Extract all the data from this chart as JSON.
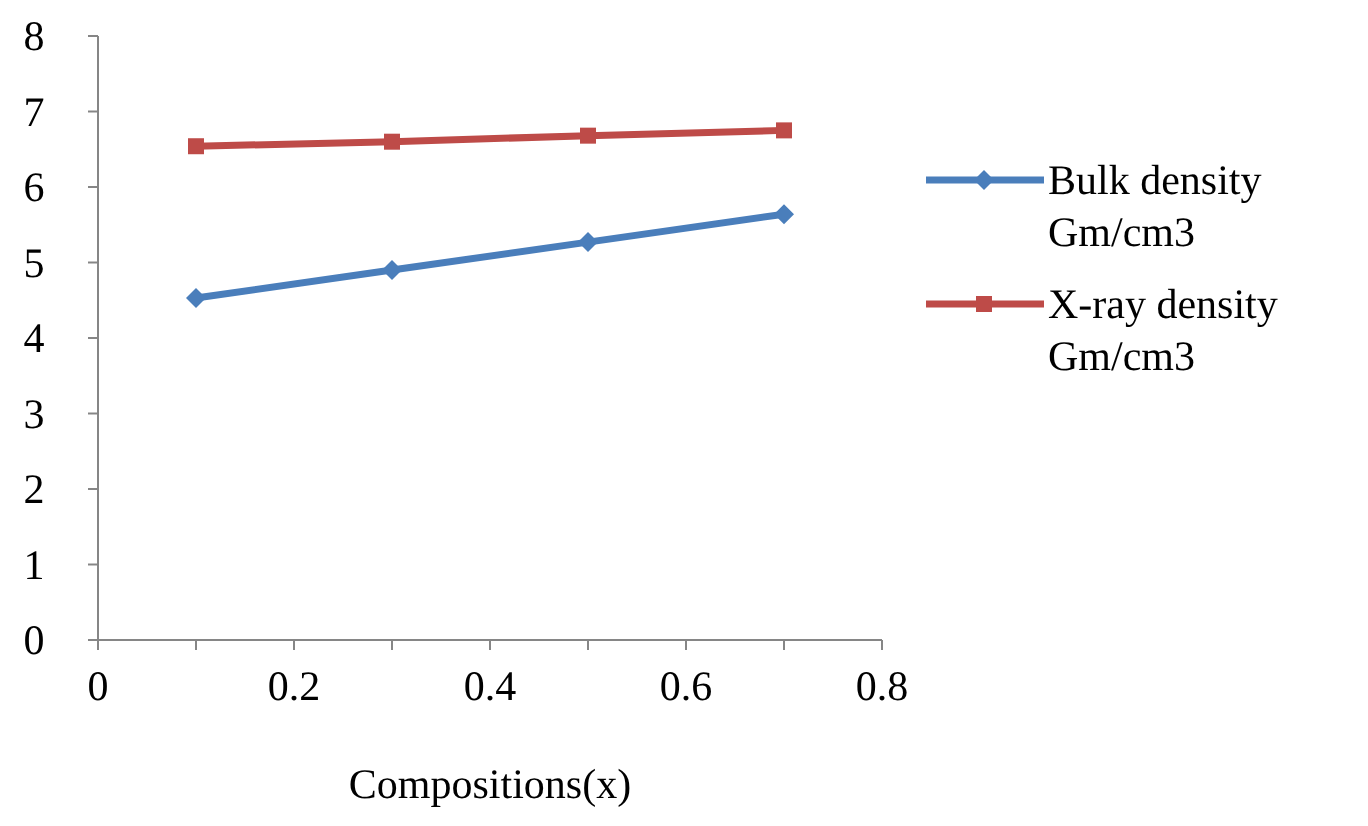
{
  "chart_data": {
    "type": "line",
    "xlabel": "Compositions(x)",
    "x": [
      0.1,
      0.3,
      0.5,
      0.7
    ],
    "series": [
      {
        "name": "Bulk density Gm/cm3",
        "color": "#4a7ebb",
        "marker": "diamond",
        "values": [
          4.53,
          4.9,
          5.27,
          5.64
        ]
      },
      {
        "name": "X-ray density Gm/cm3",
        "color": "#be4b48",
        "marker": "square",
        "values": [
          6.54,
          6.6,
          6.68,
          6.75
        ]
      }
    ],
    "xlim": [
      0,
      0.8
    ],
    "xticks": [
      0,
      {
        "value": 0.1,
        "label": null
      },
      0.2,
      {
        "value": 0.3,
        "label": null
      },
      0.4,
      {
        "value": 0.5,
        "label": null
      },
      0.6,
      {
        "value": 0.7,
        "label": null
      },
      0.8
    ],
    "ylim": [
      0,
      8
    ],
    "yticks": [
      0,
      1,
      2,
      3,
      4,
      5,
      6,
      7,
      8
    ],
    "grid": false,
    "legend": "right"
  }
}
